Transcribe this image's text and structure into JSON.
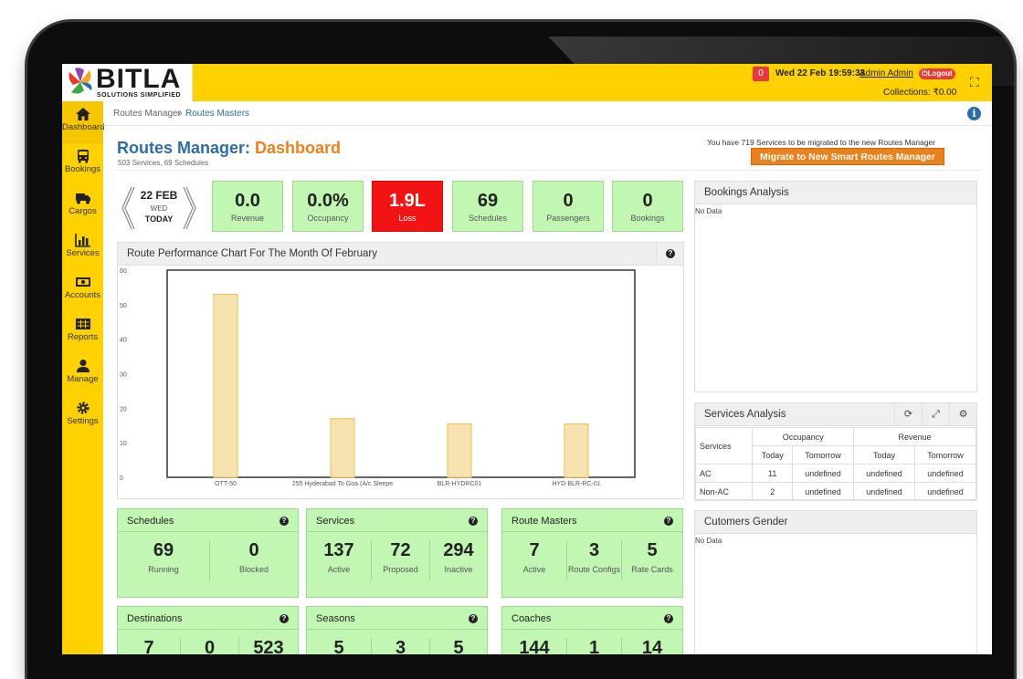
{
  "header": {
    "logo_text": "BITLA",
    "logo_tag": "SOLUTIONS SIMPLIFIED",
    "notifications": "0",
    "datetime": "Wed 22 Feb 19:59:33",
    "user": "Admin Admin",
    "logout": "Logout",
    "collections": "Collections: ₹0.00"
  },
  "sidebar": {
    "items": [
      {
        "label": "Dashboard",
        "icon": "home-icon"
      },
      {
        "label": "Bookings",
        "icon": "bus-icon"
      },
      {
        "label": "Cargos",
        "icon": "truck-icon"
      },
      {
        "label": "Services",
        "icon": "bar-chart-icon"
      },
      {
        "label": "Accounts",
        "icon": "money-icon"
      },
      {
        "label": "Reports",
        "icon": "table-icon"
      },
      {
        "label": "Manage",
        "icon": "user-icon"
      },
      {
        "label": "Settings",
        "icon": "gear-icon"
      }
    ]
  },
  "breadcrumb": {
    "parent": "Routes Manager",
    "sep": "»",
    "current": "Routes Masters"
  },
  "page": {
    "title_main": "Routes Manager: ",
    "title_accent": "Dashboard",
    "subtitle": "503 Services, 69 Schedules",
    "migrate_note": "You have 719 Services to be migrated to the new Routes Manager",
    "migrate_button": "Migrate to New Smart Routes Manager"
  },
  "date": {
    "date": "22 FEB",
    "day": "WED",
    "label": "TODAY"
  },
  "stats": [
    {
      "value": "0.0",
      "label": "Revenue"
    },
    {
      "value": "0.0%",
      "label": "Occupancy"
    },
    {
      "value": "1.9L",
      "label": "Loss"
    },
    {
      "value": "69",
      "label": "Schedules"
    },
    {
      "value": "0",
      "label": "Passengers"
    },
    {
      "value": "0",
      "label": "Bookings"
    }
  ],
  "chart_panel": {
    "title": "Route Performance Chart For The Month Of February"
  },
  "chart_data": {
    "type": "bar",
    "categories": [
      "OTT-50",
      "255 Hyderabad To Goa (A/c Sleepe",
      "BLR-HYDRC01",
      "HYD-BLR-RC-01"
    ],
    "values": [
      53,
      17,
      15.5,
      15.5
    ],
    "title": "",
    "xlabel": "",
    "ylabel": "",
    "ylim": [
      0,
      60
    ],
    "yticks": [
      0,
      10,
      20,
      30,
      40,
      50,
      60
    ],
    "bar_color": "#f7e3b0",
    "bar_border": "#e8c05a"
  },
  "bookings_analysis": {
    "title": "Bookings Analysis",
    "empty": "No Data"
  },
  "services_analysis": {
    "title": "Services Analysis",
    "col_services": "Services",
    "group_occupancy": "Occupancy",
    "group_revenue": "Revenue",
    "sub_today": "Today",
    "sub_tomorrow": "Tomorrow",
    "rows": [
      {
        "name": "AC",
        "occ_today": "11",
        "occ_tomorrow": "undefined",
        "rev_today": "undefined",
        "rev_tomorrow": "undefined"
      },
      {
        "name": "Non-AC",
        "occ_today": "2",
        "occ_tomorrow": "undefined",
        "rev_today": "undefined",
        "rev_tomorrow": "undefined"
      }
    ]
  },
  "customers_gender": {
    "title": "Cutomers Gender",
    "empty": "No Data"
  },
  "cards": {
    "schedules": {
      "title": "Schedules",
      "items": [
        {
          "v": "69",
          "l": "Running"
        },
        {
          "v": "0",
          "l": "Blocked"
        }
      ]
    },
    "services": {
      "title": "Services",
      "items": [
        {
          "v": "137",
          "l": "Active"
        },
        {
          "v": "72",
          "l": "Proposed"
        },
        {
          "v": "294",
          "l": "Inactive"
        }
      ]
    },
    "route_masters": {
      "title": "Route Masters",
      "items": [
        {
          "v": "7",
          "l": "Active"
        },
        {
          "v": "3",
          "l": "Route Configs"
        },
        {
          "v": "5",
          "l": "Rate Cards"
        }
      ]
    },
    "destinations": {
      "title": "Destinations",
      "items": [
        {
          "v": "7"
        },
        {
          "v": "0"
        },
        {
          "v": "523"
        }
      ]
    },
    "seasons": {
      "title": "Seasons",
      "items": [
        {
          "v": "5"
        },
        {
          "v": "3"
        },
        {
          "v": "5"
        }
      ]
    },
    "coaches": {
      "title": "Coaches",
      "items": [
        {
          "v": "144"
        },
        {
          "v": "1"
        },
        {
          "v": "14"
        }
      ]
    }
  }
}
